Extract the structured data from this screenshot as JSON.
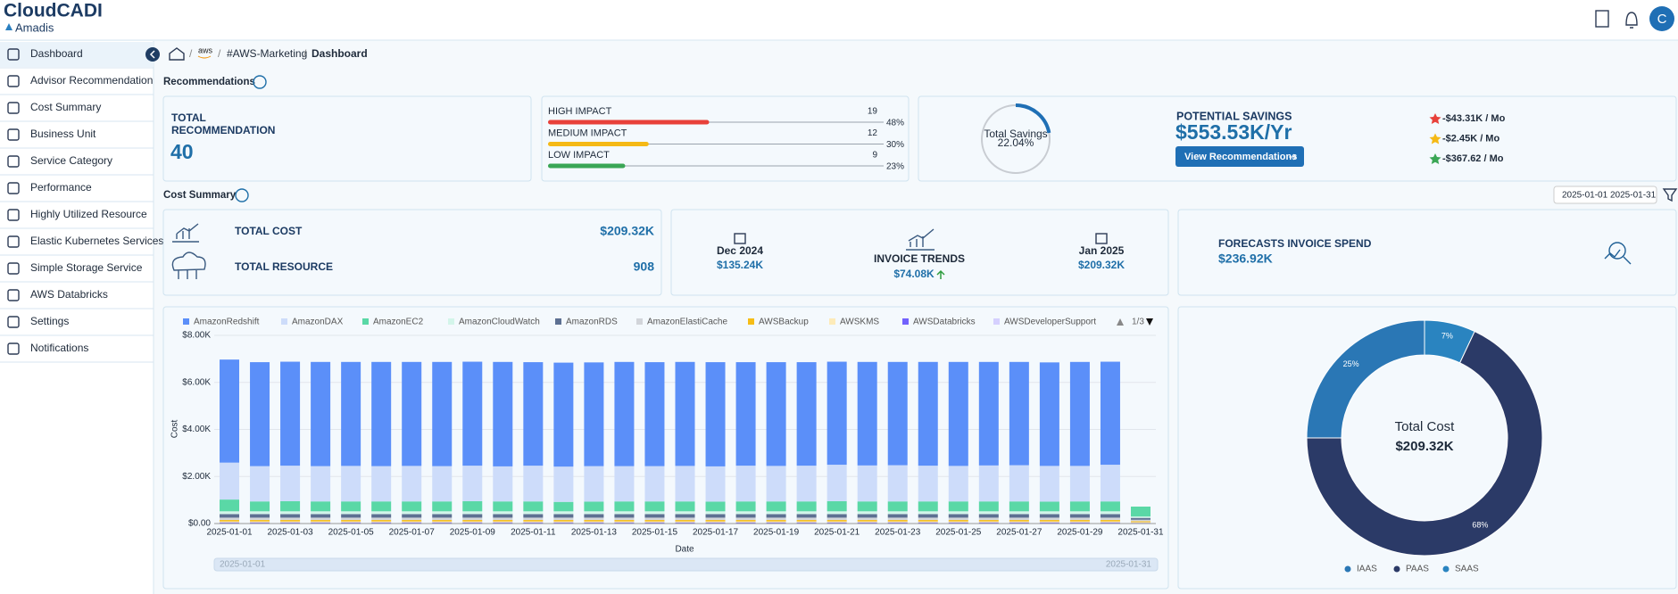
{
  "header": {
    "brand": "CloudCADI",
    "company": "Amadis",
    "avatar": "C"
  },
  "sidebar": {
    "items": [
      "Dashboard",
      "Advisor Recommendation",
      "Cost Summary",
      "Business Unit",
      "Service Category",
      "Performance",
      "Highly Utilized Resource",
      "Elastic Kubernetes Services",
      "Simple Storage Service",
      "AWS Databricks",
      "Settings",
      "Notifications"
    ]
  },
  "breadcrumb": {
    "provider": "aws",
    "account": "#AWS-Marketing",
    "page": "Dashboard"
  },
  "recommendations": {
    "title": "Recommendations",
    "total_label_1": "TOTAL",
    "total_label_2": "RECOMMENDATION",
    "total": 40,
    "impacts": [
      {
        "label": "HIGH IMPACT",
        "count": 19,
        "percent": 48,
        "percent_label": "48%",
        "color": "#e8413a"
      },
      {
        "label": "MEDIUM IMPACT",
        "count": 12,
        "percent": 30,
        "percent_label": "30%",
        "color": "#f5b915"
      },
      {
        "label": "LOW IMPACT",
        "count": 9,
        "percent": 23,
        "percent_label": "23%",
        "color": "#3aa655"
      }
    ],
    "savings_title": "Total Savings",
    "savings_percent": 22.04,
    "savings_percent_label": "22.04%",
    "potential_title": "POTENTIAL SAVINGS",
    "potential_value": "$553.53K/Yr",
    "button": "View Recommendations",
    "monthly": [
      {
        "value": "-$43.31K / Mo",
        "color": "#e8413a"
      },
      {
        "value": "-$2.45K / Mo",
        "color": "#f5b915"
      },
      {
        "value": "-$367.62 / Mo",
        "color": "#3aa655"
      }
    ]
  },
  "cost_summary": {
    "title": "Cost Summary",
    "date_start": "2025-01-01",
    "date_end": "2025-01-31",
    "total_cost_label": "TOTAL COST",
    "total_cost": "$209.32K",
    "total_resource_label": "TOTAL RESOURCE",
    "total_resource": 908,
    "prev_month": "Dec 2024",
    "prev_value": "$135.24K",
    "trend_label": "INVOICE TRENDS",
    "trend_value": "$74.08K",
    "curr_month": "Jan 2025",
    "curr_value": "$209.32K",
    "forecast_label": "FORECASTS INVOICE SPEND",
    "forecast_value": "$236.92K"
  },
  "chart_data": [
    {
      "type": "bar",
      "stacked": true,
      "x_label": "Date",
      "y_label": "Cost",
      "legend_page": "1/3",
      "slider_start": "2025-01-01",
      "slider_end": "2025-01-31",
      "ylim": [
        0,
        8000
      ],
      "yticks": [
        {
          "value": 0,
          "label": "$0.00"
        },
        {
          "value": 2000,
          "label": "$2.00K"
        },
        {
          "value": 4000,
          "label": "$4.00K"
        },
        {
          "value": 6000,
          "label": "$6.00K"
        },
        {
          "value": 8000,
          "label": "$8.00K"
        }
      ],
      "grid": true,
      "categories": [
        "2025-01-01",
        null,
        "2025-01-03",
        null,
        "2025-01-05",
        null,
        "2025-01-07",
        null,
        "2025-01-09",
        null,
        "2025-01-11",
        null,
        "2025-01-13",
        null,
        "2025-01-15",
        null,
        "2025-01-17",
        null,
        "2025-01-19",
        null,
        "2025-01-21",
        null,
        "2025-01-23",
        null,
        "2025-01-25",
        null,
        "2025-01-27",
        null,
        "2025-01-29",
        null,
        "2025-01-31"
      ],
      "series": [
        {
          "name": "AmazonRedshift",
          "color": "#5b8ff9",
          "values": [
            4380,
            4420,
            4420,
            4430,
            4420,
            4430,
            4420,
            4430,
            4420,
            4440,
            4400,
            4420,
            4410,
            4430,
            4420,
            4420,
            4430,
            4400,
            4410,
            4400,
            4380,
            4400,
            4390,
            4410,
            4420,
            4400,
            4390,
            4400,
            4420,
            4380,
            0
          ]
        },
        {
          "name": "AmazonDAX",
          "color": "#cddcfa",
          "values": [
            1570,
            1500,
            1510,
            1500,
            1510,
            1500,
            1510,
            1500,
            1510,
            1490,
            1520,
            1500,
            1510,
            1500,
            1500,
            1510,
            1500,
            1520,
            1510,
            1520,
            1550,
            1530,
            1540,
            1520,
            1510,
            1530,
            1540,
            1520,
            1510,
            1560,
            0
          ]
        },
        {
          "name": "AmazonEC2",
          "color": "#5ad8a6",
          "values": [
            500,
            420,
            430,
            420,
            420,
            420,
            420,
            420,
            430,
            420,
            420,
            400,
            410,
            420,
            420,
            420,
            410,
            420,
            420,
            420,
            430,
            420,
            420,
            420,
            420,
            420,
            420,
            410,
            420,
            420,
            420
          ]
        },
        {
          "name": "AmazonCloudWatch",
          "color": "#d3f5ea",
          "values": [
            120,
            120,
            120,
            120,
            120,
            120,
            120,
            120,
            120,
            120,
            120,
            120,
            120,
            120,
            120,
            120,
            120,
            120,
            120,
            120,
            120,
            120,
            120,
            120,
            120,
            120,
            120,
            120,
            120,
            120,
            60
          ]
        },
        {
          "name": "AmazonRDS",
          "color": "#5d7092",
          "values": [
            150,
            150,
            150,
            150,
            150,
            150,
            150,
            150,
            150,
            150,
            150,
            150,
            150,
            150,
            150,
            150,
            150,
            150,
            150,
            150,
            150,
            150,
            150,
            150,
            150,
            150,
            150,
            150,
            150,
            150,
            80
          ]
        },
        {
          "name": "AmazonElastiCache",
          "color": "#d2d5da",
          "values": [
            100,
            100,
            100,
            100,
            100,
            100,
            100,
            100,
            100,
            100,
            100,
            100,
            100,
            100,
            100,
            100,
            100,
            100,
            100,
            100,
            100,
            100,
            100,
            100,
            100,
            100,
            100,
            100,
            100,
            100,
            60
          ]
        },
        {
          "name": "AWSBackup",
          "color": "#f6bd16",
          "values": [
            60,
            60,
            60,
            60,
            60,
            60,
            60,
            60,
            60,
            60,
            60,
            60,
            60,
            60,
            60,
            60,
            60,
            60,
            60,
            60,
            60,
            60,
            60,
            60,
            60,
            60,
            60,
            60,
            60,
            60,
            40
          ]
        },
        {
          "name": "AWSKMS",
          "color": "#fdebb9",
          "values": [
            40,
            40,
            40,
            40,
            40,
            40,
            40,
            40,
            40,
            40,
            40,
            40,
            40,
            40,
            40,
            40,
            40,
            40,
            40,
            40,
            40,
            40,
            40,
            40,
            40,
            40,
            40,
            40,
            40,
            40,
            30
          ]
        },
        {
          "name": "AWSDatabricks",
          "color": "#7262fd",
          "values": [
            30,
            30,
            30,
            30,
            30,
            30,
            30,
            30,
            30,
            30,
            30,
            30,
            30,
            30,
            30,
            30,
            30,
            30,
            30,
            30,
            30,
            30,
            30,
            30,
            30,
            30,
            30,
            30,
            30,
            30,
            20
          ]
        },
        {
          "name": "AWSDeveloperSupport",
          "color": "#d5d0fe",
          "values": [
            20,
            20,
            20,
            20,
            20,
            20,
            20,
            20,
            20,
            20,
            20,
            20,
            20,
            20,
            20,
            20,
            20,
            20,
            20,
            20,
            20,
            20,
            20,
            20,
            20,
            20,
            20,
            20,
            20,
            20,
            10
          ]
        }
      ]
    },
    {
      "type": "pie",
      "donut": true,
      "center_title": "Total Cost",
      "center_value": "$209.32K",
      "categories": [
        "IAAS",
        "PAAS",
        "SAAS"
      ],
      "values": [
        25,
        68,
        7
      ],
      "value_labels": [
        "25%",
        "68%",
        "7%"
      ],
      "colors": [
        "#2a77b5",
        "#2b3a67",
        "#2a84c0"
      ]
    }
  ]
}
